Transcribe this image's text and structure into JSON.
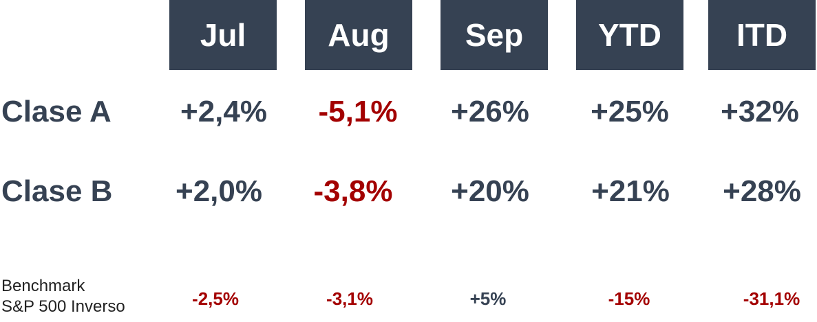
{
  "columns": [
    "Jul",
    "Aug",
    "Sep",
    "YTD",
    "ITD"
  ],
  "rows": [
    {
      "label": "Clase A",
      "values": [
        "+2,4%",
        "-5,1%",
        "+26%",
        "+25%",
        "+32%"
      ]
    },
    {
      "label": "Clase B",
      "values": [
        "+2,0%",
        "-3,8%",
        "+20%",
        "+21%",
        "+28%"
      ]
    }
  ],
  "benchmark": {
    "label_line1": "Benchmark",
    "label_line2": "S&P 500 Inverso",
    "values": [
      "-2,5%",
      "-3,1%",
      "+5%",
      "-15%",
      "-31,1%"
    ]
  },
  "colors": {
    "header_bg": "#364253",
    "positive": "#364253",
    "negative": "#a30000"
  }
}
